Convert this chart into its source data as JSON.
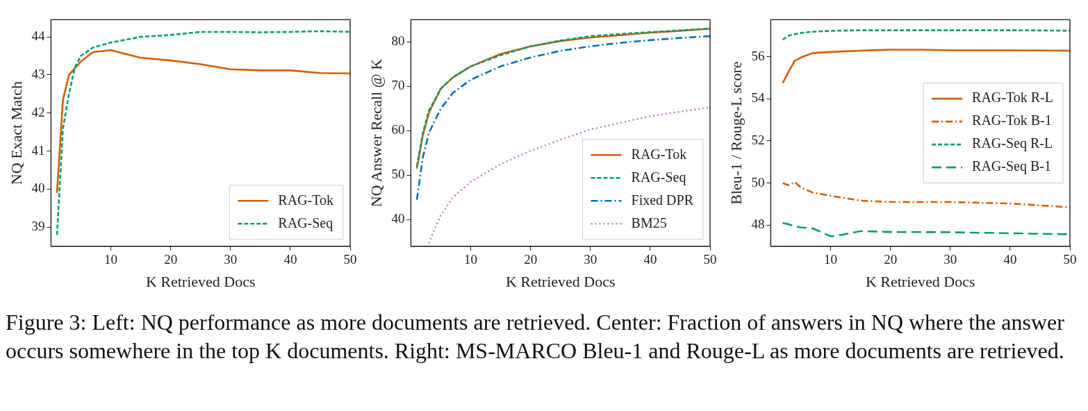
{
  "chart_data": [
    {
      "type": "line",
      "xlabel": "K Retrieved Docs",
      "ylabel": "NQ Exact Match",
      "xlim": [
        0,
        50
      ],
      "xticks": [
        10,
        20,
        30,
        40,
        50
      ],
      "ylim": [
        38.5,
        44.45
      ],
      "yticks": [
        39,
        40,
        41,
        42,
        43,
        44
      ],
      "grid": false,
      "legend": "bottom right",
      "marker": "none",
      "series": [
        {
          "name": "RAG-Tok",
          "color": "#d55e00",
          "line_style": "solid",
          "x": [
            1,
            2,
            3,
            5,
            7,
            10,
            15,
            20,
            25,
            30,
            35,
            40,
            45,
            50
          ],
          "values": [
            39.9,
            42.35,
            43.0,
            43.35,
            43.6,
            43.65,
            43.45,
            43.38,
            43.28,
            43.15,
            43.12,
            43.12,
            43.05,
            43.04
          ]
        },
        {
          "name": "RAG-Seq",
          "color": "#029e73",
          "line_style": "dashed",
          "x": [
            1,
            2,
            3,
            4,
            5,
            7,
            10,
            15,
            20,
            25,
            30,
            35,
            40,
            45,
            50
          ],
          "values": [
            38.8,
            41.6,
            42.5,
            43.2,
            43.5,
            43.72,
            43.85,
            44.0,
            44.05,
            44.13,
            44.13,
            44.12,
            44.13,
            44.15,
            44.13
          ]
        }
      ],
      "annotations": [
        "Figure 3: Left: NQ performance as more documents are retrieved. Center: Fraction of answers in NQ where the answer occurs somewhere in the top K documents. Right: MS-MARCO Bleu-1 and Rouge-L as more documents are retrieved."
      ]
    },
    {
      "type": "line",
      "xlabel": "K Retrieved Docs",
      "ylabel": "NQ Answer Recall @ K",
      "xlim": [
        0,
        50
      ],
      "xticks": [
        10,
        20,
        30,
        40,
        50
      ],
      "ylim": [
        34,
        85
      ],
      "yticks": [
        40,
        50,
        60,
        70,
        80
      ],
      "grid": false,
      "legend": "bottom right",
      "marker": "none",
      "series": [
        {
          "name": "RAG-Tok",
          "color": "#d55e00",
          "line_style": "solid",
          "x": [
            1,
            2,
            3,
            5,
            7,
            10,
            15,
            20,
            25,
            30,
            35,
            40,
            45,
            50
          ],
          "values": [
            51.5,
            59,
            64,
            69.5,
            72,
            74.5,
            77.3,
            79,
            80.2,
            81,
            81.5,
            82.1,
            82.5,
            83
          ]
        },
        {
          "name": "RAG-Seq",
          "color": "#029e73",
          "line_style": "dashed",
          "x": [
            1,
            2,
            3,
            5,
            7,
            10,
            15,
            20,
            25,
            30,
            35,
            40,
            45,
            50
          ],
          "values": [
            52,
            59.5,
            64.5,
            69.5,
            72,
            74.5,
            77,
            79,
            80.3,
            81.3,
            81.8,
            82.2,
            82.6,
            83
          ]
        },
        {
          "name": "Fixed DPR",
          "color": "#0173b2",
          "line_style": "dashdot",
          "x": [
            1,
            2,
            3,
            5,
            7,
            10,
            15,
            20,
            25,
            30,
            35,
            40,
            45,
            50
          ],
          "values": [
            44.5,
            54,
            59.5,
            65,
            68.5,
            71.5,
            74.5,
            76.5,
            78,
            79,
            79.8,
            80.4,
            80.9,
            81.3
          ]
        },
        {
          "name": "BM25",
          "color": "#cc78bc",
          "line_style": "dotted",
          "x": [
            3,
            4,
            5,
            7,
            10,
            15,
            20,
            25,
            30,
            35,
            40,
            45,
            50
          ],
          "values": [
            34.7,
            38,
            41,
            45,
            48.5,
            52.5,
            55.5,
            58,
            60.3,
            61.8,
            63.3,
            64.3,
            65.3
          ]
        }
      ]
    },
    {
      "type": "line",
      "xlabel": "K Retrieved Docs",
      "ylabel": "Bleu-1 / Rouge-L score",
      "xlim": [
        0,
        50
      ],
      "xticks": [
        10,
        20,
        30,
        40,
        50
      ],
      "ylim": [
        47,
        57.75
      ],
      "yticks": [
        48,
        50,
        52,
        54,
        56
      ],
      "grid": false,
      "legend": "right",
      "marker": "none",
      "series": [
        {
          "name": "RAG-Tok R-L",
          "color": "#d55e00",
          "line_style": "solid",
          "x": [
            2,
            3,
            4,
            5,
            7,
            10,
            15,
            20,
            25,
            30,
            40,
            50
          ],
          "values": [
            54.75,
            55.3,
            55.8,
            55.95,
            56.17,
            56.22,
            56.28,
            56.33,
            56.33,
            56.3,
            56.3,
            56.28
          ]
        },
        {
          "name": "RAG-Tok B-1",
          "color": "#d55e00",
          "line_style": "dashdot",
          "x": [
            2,
            3,
            4,
            5,
            7,
            10,
            15,
            20,
            25,
            30,
            40,
            50
          ],
          "values": [
            50.0,
            49.9,
            50.05,
            49.8,
            49.55,
            49.4,
            49.17,
            49.1,
            49.1,
            49.1,
            49.03,
            48.85
          ]
        },
        {
          "name": "RAG-Seq R-L",
          "color": "#029e73",
          "line_style": "dashed",
          "x": [
            2,
            3,
            5,
            7,
            10,
            15,
            20,
            30,
            40,
            50
          ],
          "values": [
            56.8,
            57.0,
            57.12,
            57.18,
            57.22,
            57.25,
            57.25,
            57.25,
            57.25,
            57.23
          ]
        },
        {
          "name": "RAG-Seq B-1",
          "color": "#029e73",
          "line_style": "longdashed",
          "x": [
            2,
            3,
            4,
            5,
            7,
            10,
            11,
            15,
            20,
            30,
            40,
            50
          ],
          "values": [
            48.1,
            48.05,
            47.95,
            47.9,
            47.85,
            47.48,
            47.5,
            47.72,
            47.68,
            47.67,
            47.62,
            47.57
          ]
        }
      ]
    }
  ]
}
